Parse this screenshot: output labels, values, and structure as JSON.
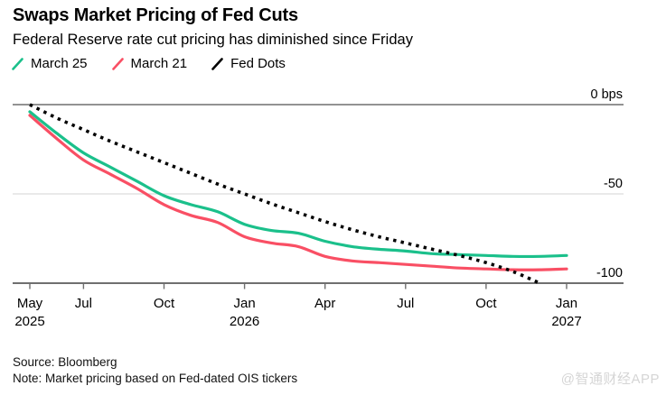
{
  "header": {
    "title": "Swaps Market Pricing of Fed Cuts",
    "subtitle": "Federal Reserve rate cut pricing has diminished since Friday"
  },
  "footer": {
    "source": "Source: Bloomberg",
    "note": "Note: Market pricing based on Fed-dated OIS tickers"
  },
  "watermark": "@智通财经APP",
  "chart_data": {
    "type": "line",
    "title": "Swaps Market Pricing of Fed Cuts",
    "subtitle": "Federal Reserve rate cut pricing has diminished since Friday",
    "unit": "bps",
    "grid": "horizontal",
    "legend_position": "top-left",
    "x_months": [
      "May 2025",
      "Jun 2025",
      "Jul 2025",
      "Aug 2025",
      "Sep 2025",
      "Oct 2025",
      "Nov 2025",
      "Dec 2025",
      "Jan 2026",
      "Feb 2026",
      "Mar 2026",
      "Apr 2026",
      "May 2026",
      "Jun 2026",
      "Jul 2026",
      "Aug 2026",
      "Sep 2026",
      "Oct 2026",
      "Nov 2026",
      "Dec 2026",
      "Jan 2027"
    ],
    "series": [
      {
        "name": "March 25",
        "color": "#1bc08b",
        "style": "solid",
        "values": [
          -4,
          -16,
          -27,
          -35,
          -43,
          -51,
          -56,
          -60,
          -67,
          -70.5,
          -72,
          -76.5,
          -79.5,
          -81,
          -82,
          -83.5,
          -84,
          -84.5,
          -85,
          -85,
          -84.5
        ]
      },
      {
        "name": "March 21",
        "color": "#f94f64",
        "style": "solid",
        "values": [
          -6,
          -19,
          -31,
          -39,
          -47,
          -56,
          -62,
          -66,
          -74,
          -77.5,
          -79.5,
          -85,
          -87.5,
          -88.5,
          -89.5,
          -90.5,
          -91.5,
          -92,
          -92.5,
          -92.5,
          -92
        ]
      },
      {
        "name": "Fed Dots",
        "color": "#000000",
        "style": "dashed",
        "values": [
          0,
          -7.5,
          -14,
          -20.5,
          -26.5,
          -32.5,
          -38.5,
          -44.5,
          -50,
          -55.5,
          -60.5,
          -65.5,
          -70,
          -74,
          -77.5,
          -81,
          -84.5,
          -88.5,
          -93.5,
          -100,
          null
        ]
      }
    ],
    "y_axis": {
      "labels": [
        "0 bps",
        "-50",
        "-100"
      ],
      "values": [
        0,
        -50,
        -100
      ],
      "range": [
        -100,
        0
      ],
      "side": "right"
    },
    "x_axis": {
      "tick_labels": [
        "May",
        "Jul",
        "Oct",
        "Jan",
        "Apr",
        "Jul",
        "Oct",
        "Jan"
      ],
      "tick_month_indices": [
        0,
        2,
        5,
        8,
        11,
        14,
        17,
        20
      ],
      "year_labels": [
        "2025",
        "2026",
        "2027"
      ],
      "year_month_indices": [
        0,
        8,
        20
      ]
    }
  }
}
